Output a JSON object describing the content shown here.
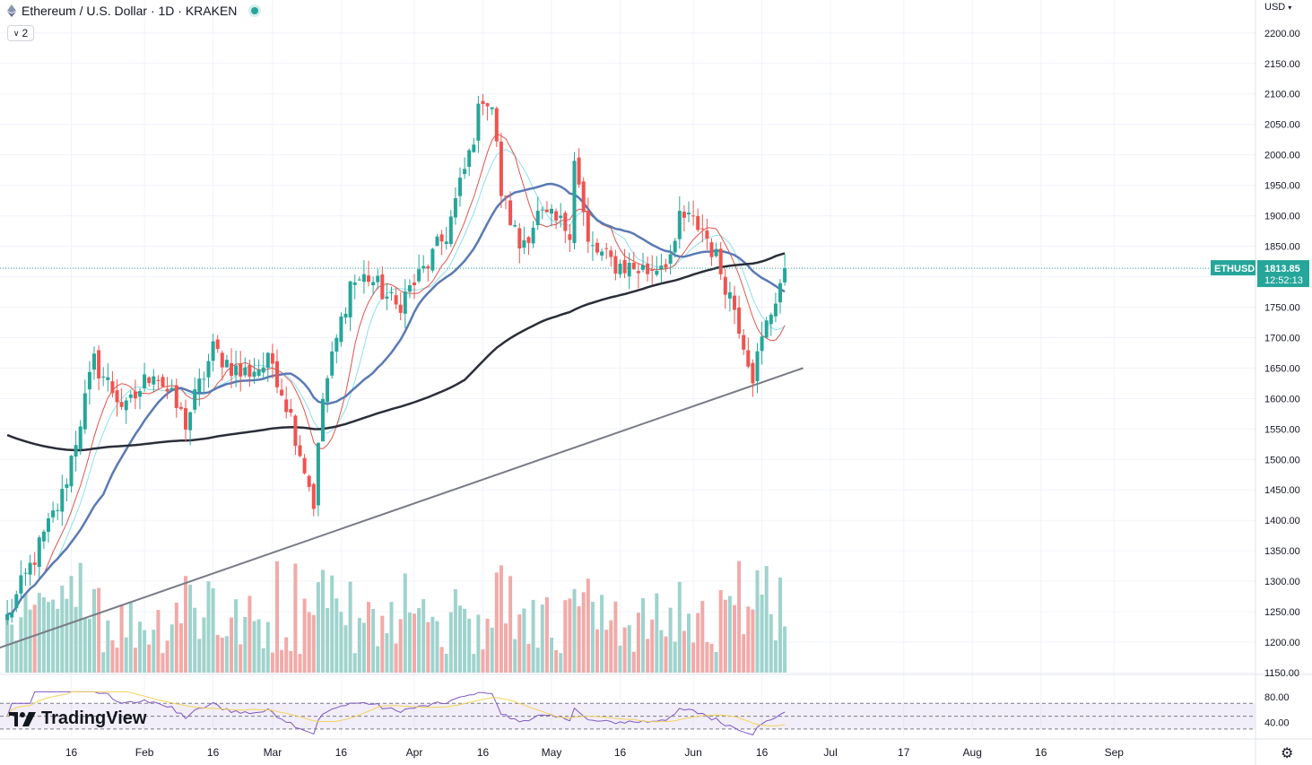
{
  "header": {
    "title": "Ethereum / U.S. Dollar · 1D · KRAKEN",
    "indicator_count": "2",
    "currency": "USD"
  },
  "price_tag": {
    "symbol": "ETHUSD",
    "price": "1813.85",
    "countdown": "12:52:13"
  },
  "brand": {
    "name": "TradingView"
  },
  "colors": {
    "up": "#26a69a",
    "down": "#ef5350",
    "vol_up": "#9fd3cd",
    "vol_down": "#f1aaa8",
    "ma_short": "#e2544e",
    "ma_mid": "#5a79b4",
    "ma_light": "#8ce0ea",
    "ma_long": "#2a2e39",
    "rsi": "#7e57c2",
    "rsi_ma": "#f2d25a",
    "grid": "#f0f3fa",
    "trendline": "#787b86",
    "price_tag_bg": "#26a69a"
  },
  "chart_data": {
    "type": "candlestick",
    "symbol": "ETHUSD",
    "timeframe": "1D",
    "exchange": "KRAKEN",
    "y_ticks": [
      "2200.00",
      "2150.00",
      "2100.00",
      "2050.00",
      "2000.00",
      "1950.00",
      "1900.00",
      "1850.00",
      "1800.00",
      "1750.00",
      "1700.00",
      "1650.00",
      "1600.00",
      "1550.00",
      "1500.00",
      "1450.00",
      "1400.00",
      "1350.00",
      "1300.00",
      "1250.00",
      "1200.00",
      "1150.00"
    ],
    "ylim": [
      1150,
      2210
    ],
    "x_ticks": [
      "16",
      "Feb",
      "16",
      "Mar",
      "16",
      "Apr",
      "16",
      "May",
      "16",
      "Jun",
      "16",
      "Jul",
      "17",
      "Aug",
      "16",
      "Sep"
    ],
    "rsi_ticks": [
      "80.00",
      "40.00"
    ],
    "rsi_levels": [
      70,
      50,
      30
    ],
    "grid": true,
    "anchor_points": [
      {
        "date": "Jan 02",
        "close": 1240
      },
      {
        "date": "Jan 14",
        "close": 1440
      },
      {
        "date": "Jan 21",
        "close": 1660
      },
      {
        "date": "Jan 28",
        "close": 1580
      },
      {
        "date": "Feb 03",
        "close": 1650
      },
      {
        "date": "Feb 10",
        "close": 1560
      },
      {
        "date": "Feb 16",
        "close": 1680
      },
      {
        "date": "Feb 22",
        "close": 1640
      },
      {
        "date": "Mar 01",
        "close": 1660
      },
      {
        "date": "Mar 05",
        "close": 1570
      },
      {
        "date": "Mar 10",
        "close": 1430
      },
      {
        "date": "Mar 12",
        "close": 1600
      },
      {
        "date": "Mar 18",
        "close": 1790
      },
      {
        "date": "Mar 22",
        "close": 1800
      },
      {
        "date": "Mar 28",
        "close": 1750
      },
      {
        "date": "Apr 03",
        "close": 1810
      },
      {
        "date": "Apr 08",
        "close": 1870
      },
      {
        "date": "Apr 13",
        "close": 2000
      },
      {
        "date": "Apr 16",
        "close": 2100
      },
      {
        "date": "Apr 18",
        "close": 2080
      },
      {
        "date": "Apr 20",
        "close": 1940
      },
      {
        "date": "Apr 24",
        "close": 1850
      },
      {
        "date": "Apr 28",
        "close": 1900
      },
      {
        "date": "May 05",
        "close": 1880
      },
      {
        "date": "May 06",
        "close": 2000
      },
      {
        "date": "May 09",
        "close": 1850
      },
      {
        "date": "May 15",
        "close": 1820
      },
      {
        "date": "May 22",
        "close": 1810
      },
      {
        "date": "May 28",
        "close": 1840
      },
      {
        "date": "May 29",
        "close": 1900
      },
      {
        "date": "Jun 03",
        "close": 1880
      },
      {
        "date": "Jun 06",
        "close": 1830
      },
      {
        "date": "Jun 10",
        "close": 1750
      },
      {
        "date": "Jun 14",
        "close": 1640
      },
      {
        "date": "Jun 17",
        "close": 1720
      },
      {
        "date": "Jun 21",
        "close": 1813.85
      }
    ],
    "moving_averages": [
      {
        "name": "MA short",
        "color": "#e2544e"
      },
      {
        "name": "MA mid",
        "color": "#5a79b4"
      },
      {
        "name": "MA light",
        "color": "#8ce0ea"
      },
      {
        "name": "MA long",
        "color": "#2a2e39"
      }
    ],
    "trendline": {
      "from": {
        "date": "Dec 31",
        "price": 1190
      },
      "to": {
        "date": "Jun 25",
        "price": 1650
      }
    }
  }
}
